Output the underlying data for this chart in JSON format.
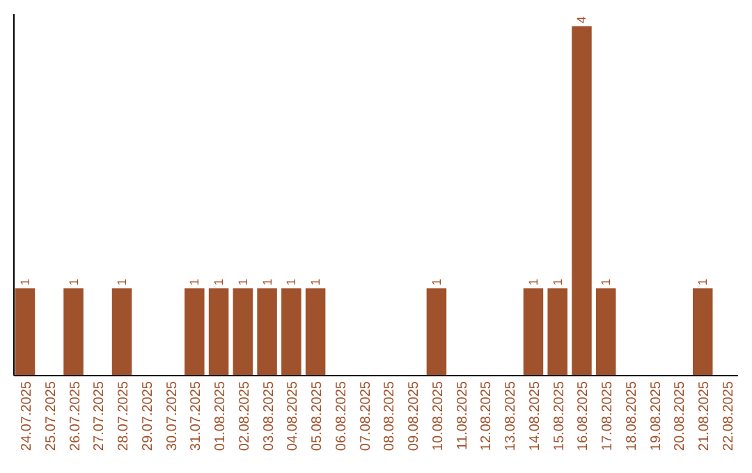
{
  "chart_data": {
    "type": "bar",
    "categories": [
      "24.07.2025",
      "25.07.2025",
      "26.07.2025",
      "27.07.2025",
      "28.07.2025",
      "29.07.2025",
      "30.07.2025",
      "31.07.2025",
      "01.08.2025",
      "02.08.2025",
      "03.08.2025",
      "04.08.2025",
      "05.08.2025",
      "06.08.2025",
      "07.08.2025",
      "08.08.2025",
      "09.08.2025",
      "10.08.2025",
      "11.08.2025",
      "12.08.2025",
      "13.08.2025",
      "14.08.2025",
      "15.08.2025",
      "16.08.2025",
      "17.08.2025",
      "18.08.2025",
      "19.08.2025",
      "20.08.2025",
      "21.08.2025",
      "22.08.2025"
    ],
    "values": [
      1,
      0,
      1,
      0,
      1,
      0,
      0,
      1,
      1,
      1,
      1,
      1,
      1,
      0,
      0,
      0,
      0,
      1,
      0,
      0,
      0,
      1,
      1,
      4,
      1,
      0,
      0,
      0,
      1,
      0
    ],
    "value_labels": [
      "1",
      null,
      "1",
      null,
      "1",
      null,
      null,
      "1",
      "1",
      "1",
      "1",
      "1",
      "1",
      null,
      null,
      null,
      null,
      "1",
      null,
      null,
      null,
      "1",
      "1",
      "4",
      "1",
      null,
      null,
      null,
      "1",
      null
    ],
    "color": "#a0522d"
  }
}
